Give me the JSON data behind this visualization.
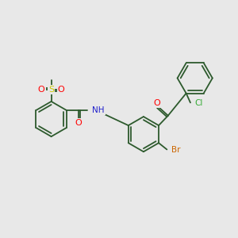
{
  "bg_color": "#e8e8e8",
  "bond_color": "#2d5a2d",
  "atom_colors": {
    "O": "#ff0000",
    "S": "#cccc00",
    "N": "#2020cc",
    "Cl": "#33aa33",
    "Br": "#cc6600",
    "C": "#2d5a2d",
    "H": "#777777"
  },
  "lw": 1.3,
  "r": 0.75,
  "inner_off": 0.12,
  "shorten": 0.07,
  "figsize": [
    3.0,
    3.0
  ],
  "dpi": 100
}
